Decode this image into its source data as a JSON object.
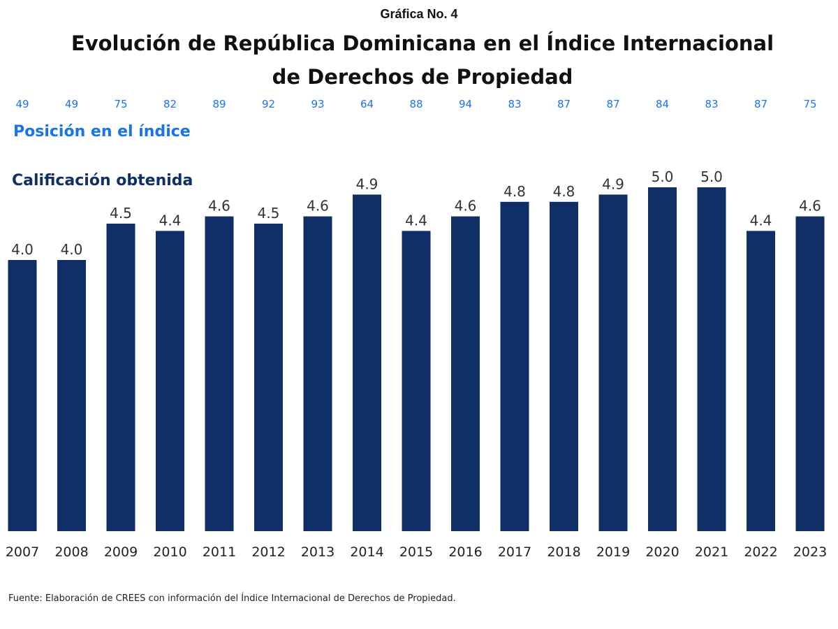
{
  "header": {
    "supertitle": "Gráfica No. 4",
    "title": "Evolución de República Dominicana en el Índice Internacional de Derechos de Propiedad"
  },
  "legend": {
    "position_label": "Posición en el índice",
    "score_label": "Calificación obtenida"
  },
  "footer": {
    "source": "Fuente: Elaboración de CREES con información del Índice Internacional de Derechos de Propiedad."
  },
  "colors": {
    "bar": "#0f2f66",
    "rank_text": "#1a73e8",
    "score_legend": "#0f2f66"
  },
  "chart_data": {
    "type": "bar",
    "title": "Evolución de República Dominicana en el Índice Internacional de Derechos de Propiedad",
    "xlabel": "",
    "ylabel": "",
    "categories": [
      "2007",
      "2008",
      "2009",
      "2010",
      "2011",
      "2012",
      "2013",
      "2014",
      "2015",
      "2016",
      "2017",
      "2018",
      "2019",
      "2020",
      "2021",
      "2022",
      "2023"
    ],
    "series": [
      {
        "name": "Calificación obtenida",
        "values": [
          4.0,
          4.0,
          4.5,
          4.4,
          4.6,
          4.5,
          4.6,
          4.9,
          4.4,
          4.6,
          4.8,
          4.8,
          4.9,
          5.0,
          5.0,
          4.4,
          4.6
        ]
      },
      {
        "name": "Posición en el índice",
        "values": [
          49,
          49,
          75,
          82,
          89,
          92,
          93,
          64,
          88,
          94,
          83,
          87,
          87,
          84,
          83,
          87,
          75
        ]
      }
    ],
    "value_labels": [
      "4.0",
      "4.0",
      "4.5",
      "4.4",
      "4.6",
      "4.5",
      "4.6",
      "4.9",
      "4.4",
      "4.6",
      "4.8",
      "4.8",
      "4.9",
      "5.0",
      "5.0",
      "4.4",
      "4.6"
    ],
    "grid": false,
    "legend": "top-left"
  }
}
